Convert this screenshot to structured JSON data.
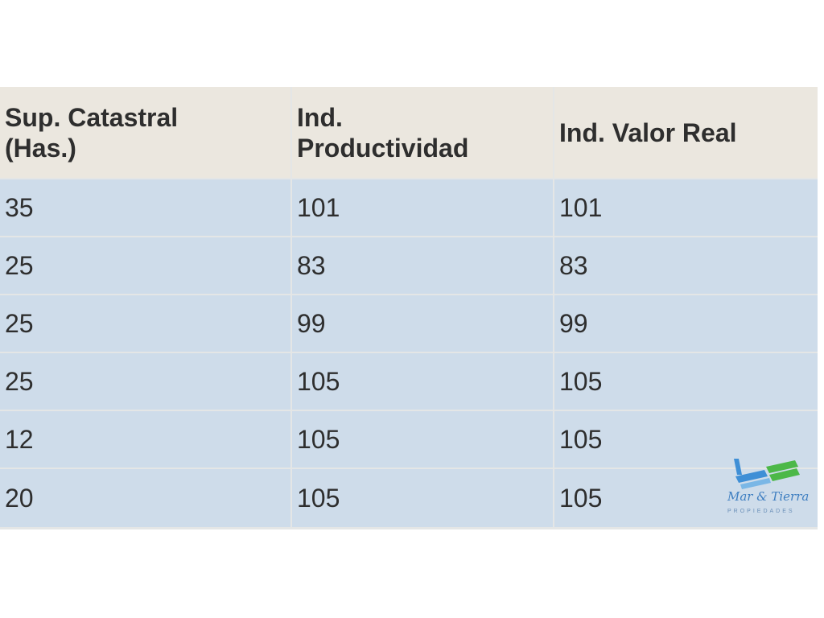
{
  "table": {
    "header": [
      "Sup. Catastral (Has.)",
      "Ind. Productividad",
      "Ind. Valor Real"
    ],
    "rows": [
      [
        "35",
        "101",
        "101"
      ],
      [
        "25",
        "83",
        "83"
      ],
      [
        "25",
        "99",
        "99"
      ],
      [
        "25",
        "105",
        "105"
      ],
      [
        "12",
        "105",
        "105"
      ],
      [
        "20",
        "105",
        "105"
      ]
    ]
  },
  "logo": {
    "name": "Mar & Tierra",
    "tagline": "PROPIEDADES"
  }
}
